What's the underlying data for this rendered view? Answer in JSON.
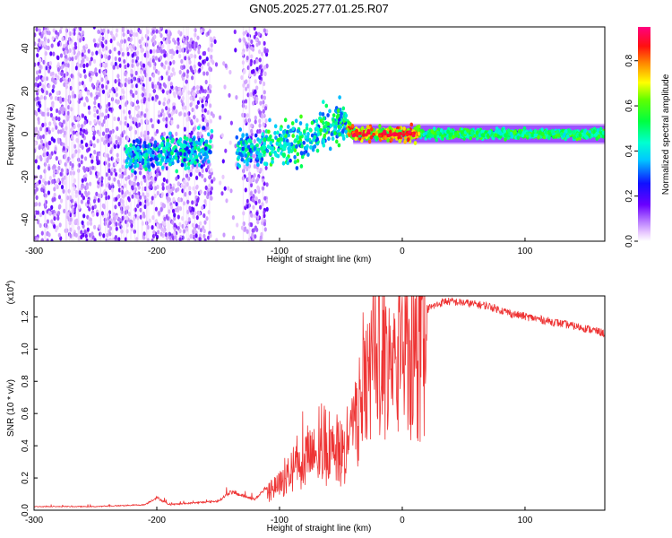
{
  "title": "GN05.2025.277.01.25.R07",
  "chart_data": [
    {
      "type": "heatmap",
      "xlabel": "Height of straight line (km)",
      "ylabel": "Frequency (Hz)",
      "xlim": [
        -300,
        165
      ],
      "ylim": [
        -50,
        50
      ],
      "x_ticks": [
        -300,
        -200,
        -100,
        0,
        100
      ],
      "y_ticks": [
        -40,
        -20,
        0,
        20,
        40
      ],
      "colorbar": {
        "label": "Normalized spectral amplitude",
        "range": [
          0,
          0.95
        ],
        "ticks": [
          0.0,
          0.2,
          0.4,
          0.6,
          0.8
        ],
        "colormap": "rainbow (white-violet-blue-cyan-green-yellow-red-magenta)"
      },
      "features": {
        "noise_region_km": [
          -300,
          -110
        ],
        "clear_gap_km": [
          -155,
          -130
        ],
        "signal_center_hz": [
          [
            -220,
            -10
          ],
          [
            -180,
            -8
          ],
          [
            -150,
            -6
          ],
          [
            -120,
            -7
          ],
          [
            -100,
            -5
          ],
          [
            -80,
            -3
          ],
          [
            -60,
            2
          ],
          [
            -50,
            6
          ],
          [
            -40,
            1
          ],
          [
            -20,
            0
          ],
          [
            0,
            0
          ],
          [
            165,
            0
          ]
        ],
        "strong_signal_km": [
          -40,
          10
        ],
        "track_halfwidth_hz": 4
      }
    },
    {
      "type": "line",
      "xlabel": "Height of straight line (km)",
      "ylabel": "SNR (10 * v/v)",
      "y_multiplier": "(x10",
      "y_exponent": "4",
      "xlim": [
        -300,
        165
      ],
      "ylim": [
        0,
        1.33
      ],
      "x_ticks": [
        -300,
        -200,
        -100,
        0,
        100
      ],
      "y_ticks": [
        0.0,
        0.2,
        0.4,
        0.6,
        0.8,
        1.0,
        1.2
      ],
      "color": "#ee3333",
      "envelope": [
        [
          -300,
          0.02
        ],
        [
          -250,
          0.02
        ],
        [
          -210,
          0.03
        ],
        [
          -200,
          0.07
        ],
        [
          -190,
          0.03
        ],
        [
          -150,
          0.05
        ],
        [
          -140,
          0.1
        ],
        [
          -120,
          0.06
        ],
        [
          -100,
          0.2
        ],
        [
          -80,
          0.4
        ],
        [
          -65,
          0.45
        ],
        [
          -50,
          0.45
        ],
        [
          -40,
          0.6
        ],
        [
          -30,
          0.95
        ],
        [
          -20,
          1.1
        ],
        [
          -10,
          1.1
        ],
        [
          0,
          1.15
        ],
        [
          10,
          1.2
        ],
        [
          20,
          1.25
        ],
        [
          35,
          1.3
        ],
        [
          50,
          1.29
        ],
        [
          70,
          1.27
        ],
        [
          90,
          1.22
        ],
        [
          110,
          1.19
        ],
        [
          130,
          1.16
        ],
        [
          150,
          1.13
        ],
        [
          165,
          1.1
        ]
      ],
      "spike": {
        "x": -19,
        "y": 1.33
      }
    }
  ]
}
